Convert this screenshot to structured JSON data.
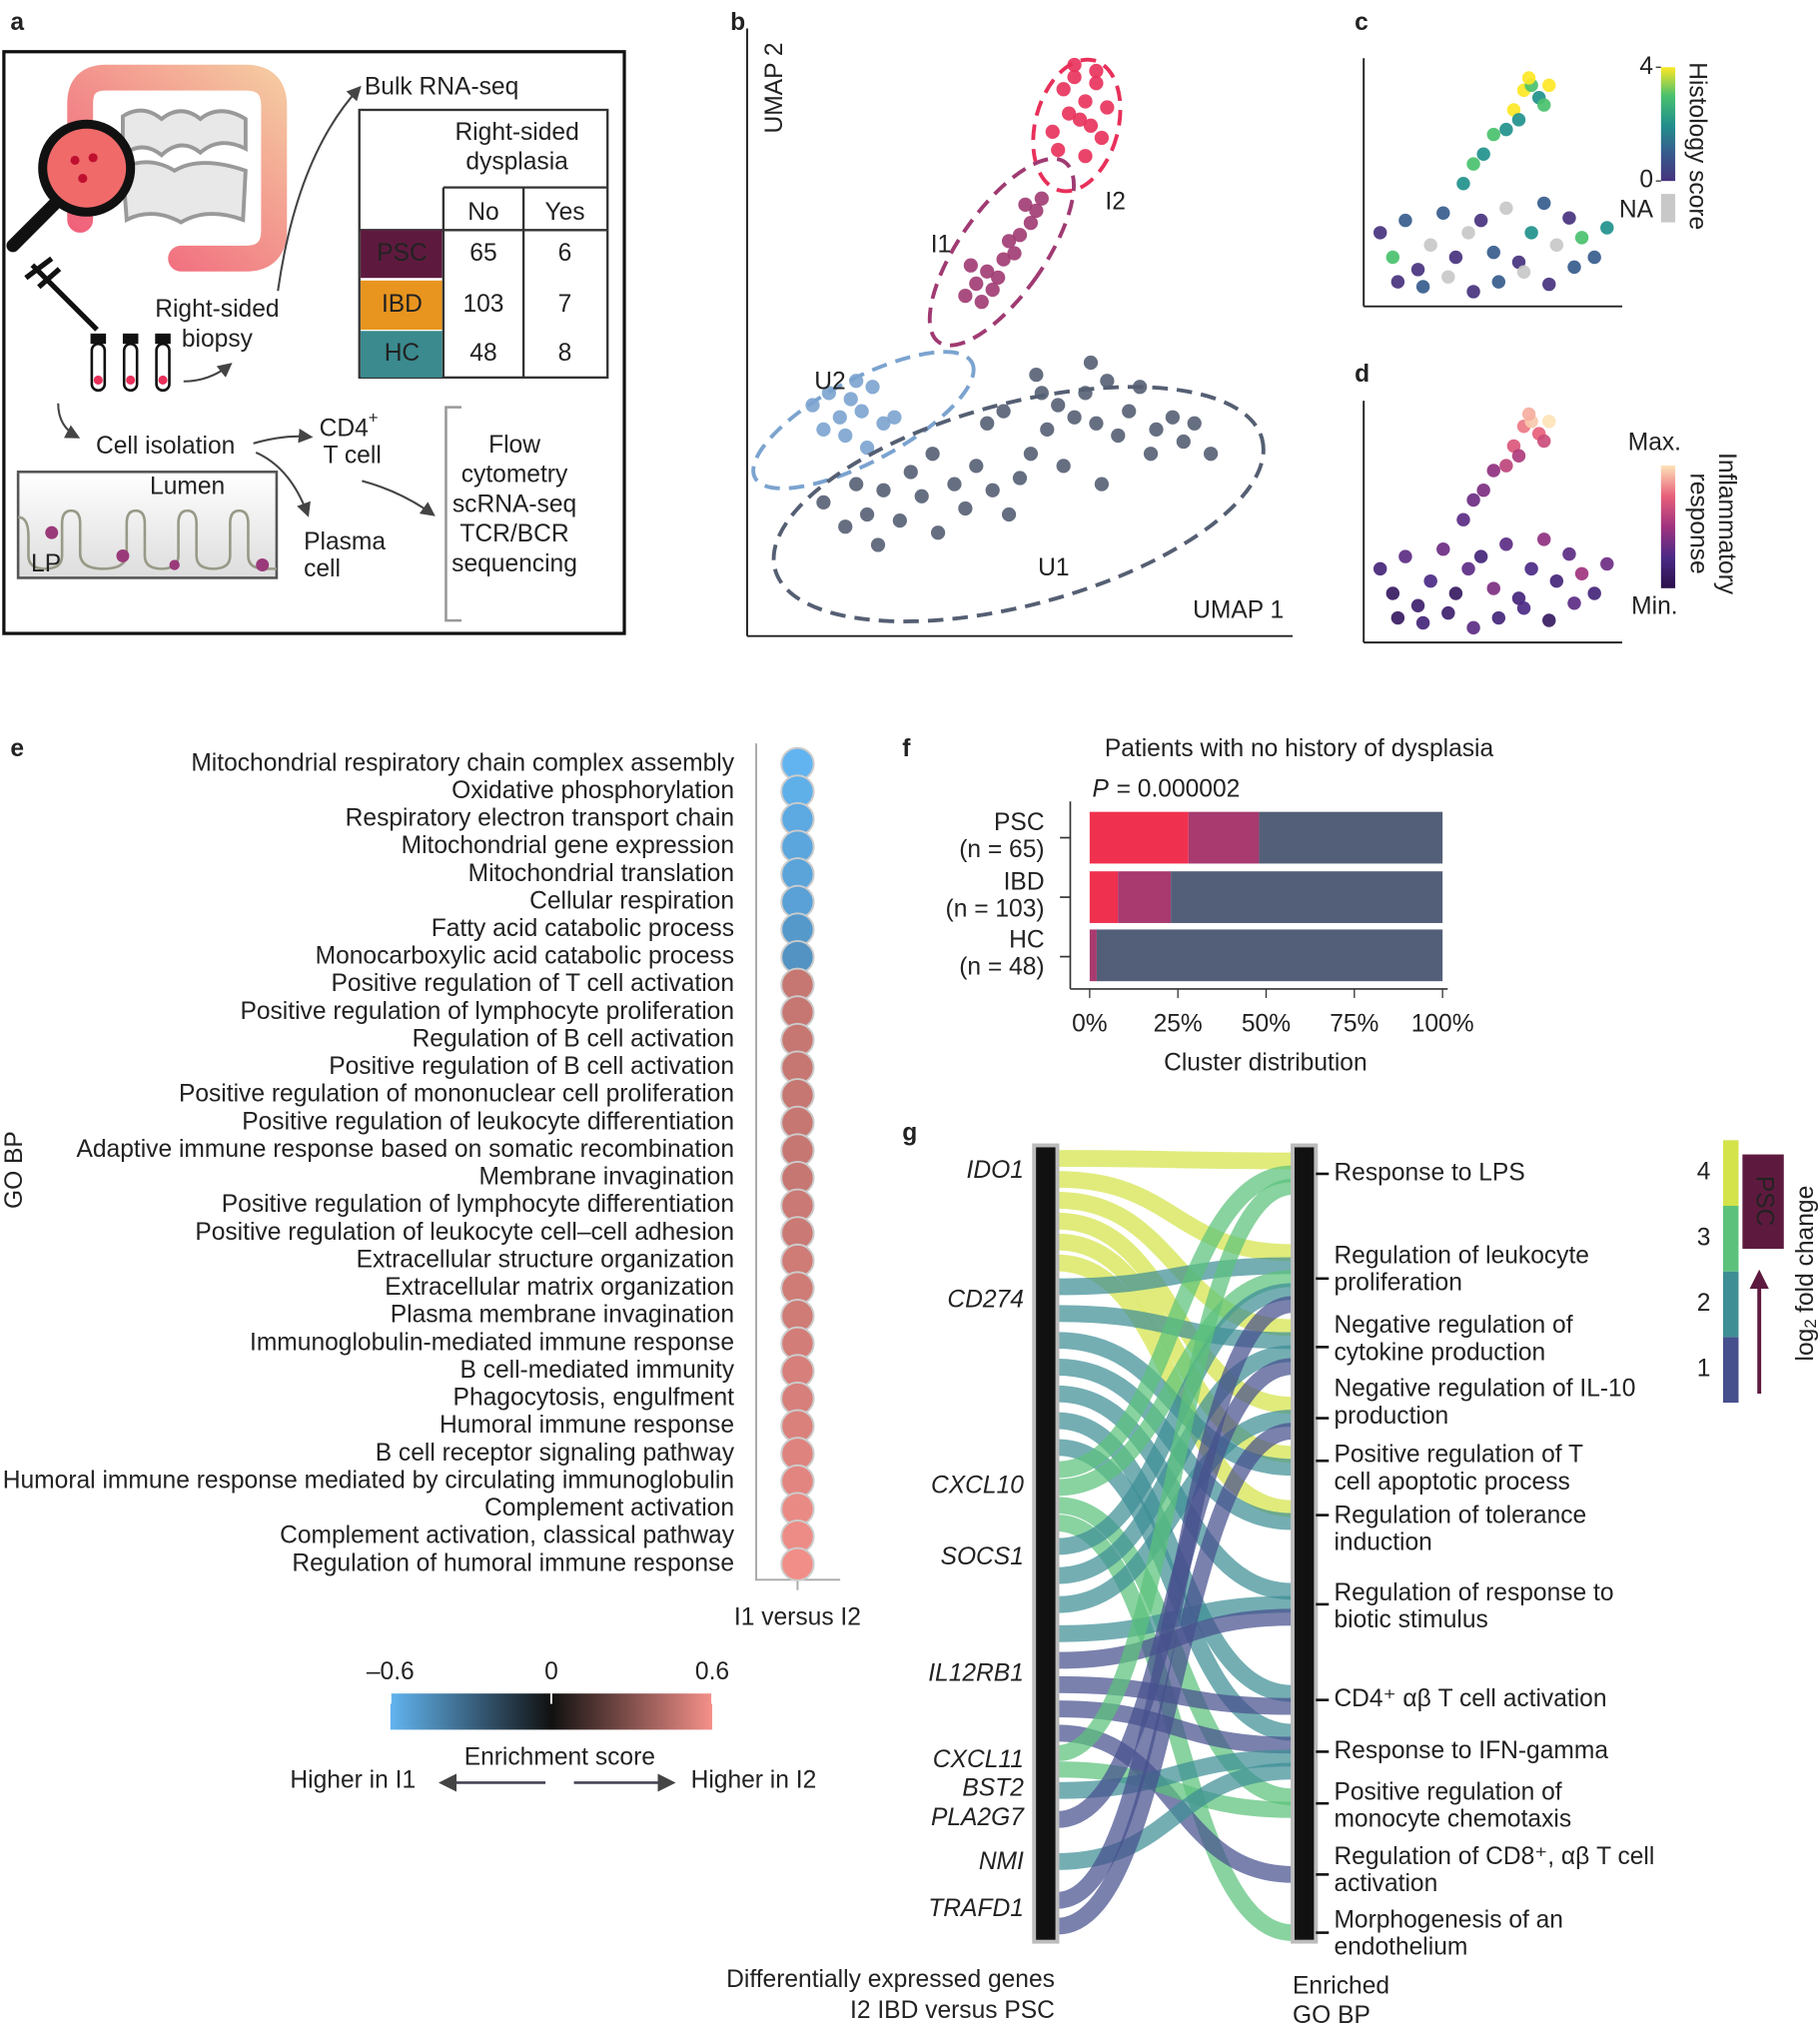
{
  "panel_labels": [
    "a",
    "b",
    "c",
    "d",
    "e",
    "f",
    "g"
  ],
  "panel_a": {
    "bulk_label": "Bulk RNA-seq",
    "table": {
      "header": [
        "Right-sided",
        "dysplasia"
      ],
      "columns": [
        "No",
        "Yes"
      ],
      "rows": [
        {
          "group": "PSC",
          "color": "#5e1a3e",
          "values": [
            65,
            6
          ]
        },
        {
          "group": "IBD",
          "color": "#e8951f",
          "values": [
            103,
            7
          ]
        },
        {
          "group": "HC",
          "color": "#3a8a8e",
          "values": [
            48,
            8
          ]
        }
      ]
    },
    "biopsy": [
      "Right-sided",
      "biopsy"
    ],
    "cell_isolation": "Cell isolation",
    "cd4": [
      "CD4",
      "+"
    ],
    "t_cell": "T cell",
    "lumen": "Lumen",
    "lp": "LP",
    "plasma": [
      "Plasma",
      "cell"
    ],
    "methods": [
      "Flow",
      "cytometry",
      "scRNA-seq",
      "TCR/BCR",
      "sequencing"
    ]
  },
  "chart_data": [
    {
      "type": "scatter",
      "xlabel": "UMAP 1",
      "ylabel": "UMAP 2",
      "xlim": [
        0,
        100
      ],
      "ylim": [
        0,
        100
      ],
      "series": [
        {
          "name": "I2",
          "color": "#e8305a",
          "x": [
            58,
            60,
            62,
            64,
            66,
            61,
            63,
            65,
            59,
            57,
            62,
            60,
            64,
            56
          ],
          "y": [
            90,
            92,
            88,
            91,
            87,
            85,
            84,
            82,
            86,
            80,
            79,
            94,
            93,
            83
          ]
        },
        {
          "name": "I1",
          "color": "#a03a72",
          "x": [
            40,
            42,
            44,
            45,
            47,
            49,
            50,
            52,
            53,
            43,
            46,
            51,
            41,
            48,
            54
          ],
          "y": [
            56,
            58,
            60,
            57,
            62,
            63,
            66,
            68,
            70,
            55,
            59,
            71,
            61,
            65,
            72
          ]
        },
        {
          "name": "U2",
          "color": "#7ba3cf",
          "x": [
            12,
            15,
            17,
            19,
            21,
            23,
            25,
            14,
            18,
            27,
            20,
            22
          ],
          "y": [
            38,
            40,
            36,
            39,
            37,
            41,
            35,
            34,
            33,
            36,
            42,
            31
          ]
        },
        {
          "name": "U1",
          "color": "#555f73",
          "x": [
            14,
            18,
            20,
            22,
            25,
            28,
            30,
            32,
            35,
            38,
            40,
            42,
            45,
            48,
            50,
            52,
            55,
            57,
            60,
            62,
            64,
            66,
            68,
            70,
            72,
            75,
            78,
            80,
            82,
            85,
            24,
            34,
            44,
            54,
            58,
            65,
            74,
            63,
            53,
            47
          ],
          "y": [
            22,
            18,
            25,
            20,
            24,
            19,
            27,
            23,
            17,
            25,
            21,
            28,
            24,
            20,
            26,
            30,
            34,
            38,
            36,
            40,
            35,
            42,
            33,
            37,
            41,
            34,
            36,
            32,
            35,
            30,
            15,
            30,
            35,
            40,
            28,
            25,
            30,
            45,
            43,
            37
          ]
        }
      ]
    },
    {
      "type": "scatter_color",
      "colorbar_title": "Histology score",
      "xlim": [
        0,
        100
      ],
      "ylim": [
        0,
        100
      ],
      "clim": [
        0,
        4
      ],
      "colorbar_ticks": [
        4,
        0
      ],
      "na_label": "NA",
      "na_color": "#c8c8c8",
      "colormap": [
        "#46327e",
        "#365c8d",
        "#21918c",
        "#4ac16d",
        "#fde725"
      ],
      "x": [
        5,
        10,
        15,
        20,
        25,
        30,
        35,
        40,
        45,
        50,
        55,
        60,
        65,
        70,
        75,
        80,
        85,
        90,
        95,
        12,
        22,
        32,
        42,
        52,
        62,
        72,
        82,
        38,
        42,
        46,
        50,
        55,
        58,
        62,
        65,
        68,
        64,
        70,
        72,
        60
      ],
      "y": [
        30,
        20,
        35,
        15,
        25,
        38,
        20,
        30,
        35,
        22,
        40,
        18,
        30,
        42,
        25,
        36,
        28,
        20,
        32,
        10,
        8,
        12,
        6,
        10,
        14,
        9,
        16,
        50,
        58,
        62,
        70,
        72,
        80,
        88,
        90,
        85,
        93,
        82,
        90,
        76
      ],
      "values": [
        0,
        3,
        1,
        0,
        null,
        1,
        0,
        null,
        0,
        1,
        null,
        0,
        2,
        1,
        null,
        0,
        3,
        1,
        2,
        0,
        1,
        null,
        0,
        1,
        null,
        0,
        1,
        2,
        3,
        2,
        3,
        2,
        4,
        4,
        3,
        2,
        4,
        3,
        4,
        2
      ]
    },
    {
      "type": "scatter_color",
      "colorbar_title": [
        "Inflammatory",
        "response"
      ],
      "colorbar_labels": [
        "Max.",
        "Min."
      ],
      "xlim": [
        0,
        100
      ],
      "ylim": [
        0,
        100
      ],
      "clim": [
        0,
        1
      ],
      "colormap": [
        "#2a0f4a",
        "#4b2a86",
        "#a0337e",
        "#e8607a",
        "#fde3b8"
      ],
      "x": [
        5,
        10,
        15,
        20,
        25,
        30,
        35,
        40,
        45,
        50,
        55,
        60,
        65,
        70,
        75,
        80,
        85,
        90,
        95,
        12,
        22,
        32,
        42,
        52,
        62,
        72,
        82,
        38,
        42,
        46,
        50,
        55,
        58,
        62,
        65,
        68,
        64,
        70,
        72,
        60
      ],
      "y": [
        30,
        20,
        35,
        15,
        25,
        38,
        20,
        30,
        35,
        22,
        40,
        18,
        30,
        42,
        25,
        36,
        28,
        20,
        32,
        10,
        8,
        12,
        6,
        10,
        14,
        9,
        16,
        50,
        58,
        62,
        70,
        72,
        80,
        88,
        90,
        85,
        93,
        82,
        90,
        76
      ],
      "values": [
        0.2,
        0.1,
        0.3,
        0.15,
        0.25,
        0.35,
        0.1,
        0.3,
        0.2,
        0.4,
        0.3,
        0.2,
        0.25,
        0.45,
        0.2,
        0.3,
        0.5,
        0.2,
        0.35,
        0.1,
        0.2,
        0.15,
        0.3,
        0.2,
        0.25,
        0.1,
        0.3,
        0.3,
        0.35,
        0.4,
        0.45,
        0.6,
        0.7,
        0.8,
        0.95,
        0.75,
        0.9,
        0.65,
        1.0,
        0.55
      ]
    },
    {
      "type": "dot",
      "ylabel": "GO BP",
      "xcategory": "I1 versus I2",
      "categories": [
        "Mitochondrial respiratory chain complex assembly",
        "Oxidative phosphorylation",
        "Respiratory electron transport chain",
        "Mitochondrial gene expression",
        "Mitochondrial translation",
        "Cellular respiration",
        "Fatty acid catabolic process",
        "Monocarboxylic acid catabolic process",
        "Positive regulation of T cell activation",
        "Positive regulation of lymphocyte proliferation",
        "Regulation of B cell activation",
        "Positive regulation of B cell activation",
        "Positive regulation of mononuclear cell proliferation",
        "Positive regulation of leukocyte differentiation",
        "Adaptive immune response based on somatic recombination",
        "Membrane invagination",
        "Positive regulation of lymphocyte differentiation",
        "Positive regulation of leukocyte cell–cell adhesion",
        "Extracellular structure organization",
        "Extracellular matrix organization",
        "Plasma membrane invagination",
        "Immunoglobulin-mediated immune response",
        "B cell-mediated immunity",
        "Phagocytosis, engulfment",
        "Humoral immune response",
        "B cell receptor signaling pathway",
        "Humoral immune response mediated by circulating immunoglobulin",
        "Complement activation",
        "Complement activation, classical pathway",
        "Regulation of humoral immune response"
      ],
      "values": [
        -0.6,
        -0.58,
        -0.56,
        -0.55,
        -0.54,
        -0.53,
        -0.5,
        -0.48,
        0.48,
        0.48,
        0.48,
        0.48,
        0.48,
        0.48,
        0.48,
        0.48,
        0.49,
        0.49,
        0.5,
        0.5,
        0.5,
        0.51,
        0.52,
        0.52,
        0.53,
        0.54,
        0.55,
        0.57,
        0.58,
        0.59
      ],
      "clim": [
        -0.6,
        0.6
      ],
      "colormap": [
        "#62b4f0",
        "#111111",
        "#f5908a"
      ],
      "colorbar_ticks": [
        {
          "value": -0.6,
          "label": "–0.6"
        },
        0,
        0.6
      ],
      "colorbar_title": "Enrichment score",
      "direction_labels": [
        "Higher in I1",
        "Higher in I2"
      ]
    },
    {
      "type": "stacked_barh",
      "title": "Patients with no history of dysplasia",
      "p_symbol": "P",
      "p_text": "= 0.000002",
      "categories": [
        "PSC",
        "IBD",
        "HC"
      ],
      "category_notes": [
        "(n = 65)",
        "(n = 103)",
        "(n = 48)"
      ],
      "series": [
        {
          "color": "#f0304f",
          "values": [
            28,
            8,
            0
          ]
        },
        {
          "color": "#a83a70",
          "values": [
            20,
            15,
            2
          ]
        },
        {
          "color": "#535f78",
          "values": [
            52,
            77,
            98
          ]
        }
      ],
      "xlim": [
        0,
        100
      ],
      "xticks": [
        {
          "value": 0,
          "label": "0%"
        },
        {
          "value": 25,
          "label": "25%"
        },
        {
          "value": 50,
          "label": "50%"
        },
        {
          "value": 75,
          "label": "75%"
        },
        {
          "value": 100,
          "label": "100%"
        }
      ],
      "xlabel": "Cluster distribution"
    },
    {
      "type": "sankey",
      "genes": [
        "IDO1",
        "CD274",
        "CXCL10",
        "SOCS1",
        "IL12RB1",
        "CXCL11",
        "BST2",
        "PLA2G7",
        "NMI",
        "TRAFD1"
      ],
      "terms": [
        [
          "Response to LPS"
        ],
        [
          "Regulation of leukocyte",
          "proliferation"
        ],
        [
          "Negative regulation of",
          "cytokine production"
        ],
        [
          "Negative regulation of IL-10",
          "production"
        ],
        [
          "Positive regulation of T",
          "cell apoptotic process"
        ],
        [
          "Regulation of tolerance",
          "induction"
        ],
        [
          "Regulation of response to",
          "biotic stimulus"
        ],
        [
          "CD4⁺ αβ T cell activation"
        ],
        [
          "Response to IFN-gamma"
        ],
        [
          "Positive regulation of",
          "monocyte chemotaxis"
        ],
        [
          "Regulation of CD8⁺, αβ T cell",
          "activation"
        ],
        [
          "Morphogenesis of an",
          "endothelium"
        ]
      ],
      "links": [
        {
          "source": 0,
          "target": 0,
          "log2fc": 4
        },
        {
          "source": 0,
          "target": 1,
          "log2fc": 4
        },
        {
          "source": 0,
          "target": 2,
          "log2fc": 4
        },
        {
          "source": 0,
          "target": 3,
          "log2fc": 4
        },
        {
          "source": 0,
          "target": 4,
          "log2fc": 4
        },
        {
          "source": 0,
          "target": 5,
          "log2fc": 4
        },
        {
          "source": 1,
          "target": 1,
          "log2fc": 2
        },
        {
          "source": 1,
          "target": 2,
          "log2fc": 2
        },
        {
          "source": 1,
          "target": 4,
          "log2fc": 2
        },
        {
          "source": 1,
          "target": 5,
          "log2fc": 2
        },
        {
          "source": 1,
          "target": 6,
          "log2fc": 2
        },
        {
          "source": 1,
          "target": 7,
          "log2fc": 2
        },
        {
          "source": 1,
          "target": 8,
          "log2fc": 2
        },
        {
          "source": 2,
          "target": 0,
          "log2fc": 3
        },
        {
          "source": 2,
          "target": 1,
          "log2fc": 3
        },
        {
          "source": 2,
          "target": 9,
          "log2fc": 3
        },
        {
          "source": 2,
          "target": 11,
          "log2fc": 3
        },
        {
          "source": 3,
          "target": 1,
          "log2fc": 2
        },
        {
          "source": 3,
          "target": 2,
          "log2fc": 2
        },
        {
          "source": 3,
          "target": 3,
          "log2fc": 2
        },
        {
          "source": 3,
          "target": 6,
          "log2fc": 2
        },
        {
          "source": 4,
          "target": 6,
          "log2fc": 1
        },
        {
          "source": 4,
          "target": 7,
          "log2fc": 1
        },
        {
          "source": 4,
          "target": 8,
          "log2fc": 1
        },
        {
          "source": 4,
          "target": 10,
          "log2fc": 1
        },
        {
          "source": 5,
          "target": 0,
          "log2fc": 3
        },
        {
          "source": 5,
          "target": 9,
          "log2fc": 3
        },
        {
          "source": 6,
          "target": 8,
          "log2fc": 2
        },
        {
          "source": 7,
          "target": 2,
          "log2fc": 1
        },
        {
          "source": 8,
          "target": 8,
          "log2fc": 2
        },
        {
          "source": 9,
          "target": 1,
          "log2fc": 1
        },
        {
          "source": 9,
          "target": 3,
          "log2fc": 1
        }
      ],
      "colorbar_ticks": [
        1,
        2,
        3,
        4
      ],
      "level_colors": [
        "#46508d",
        "#3e8f95",
        "#5cc27b",
        "#d4e34a"
      ],
      "group": "PSC",
      "group_color": "#5e1a3e",
      "colorbar_title": [
        "log",
        "2",
        "fold change"
      ],
      "left_title": [
        "Differentially expressed genes",
        "I2 IBD versus PSC"
      ],
      "right_title": [
        "Enriched",
        "GO BP"
      ]
    }
  ]
}
